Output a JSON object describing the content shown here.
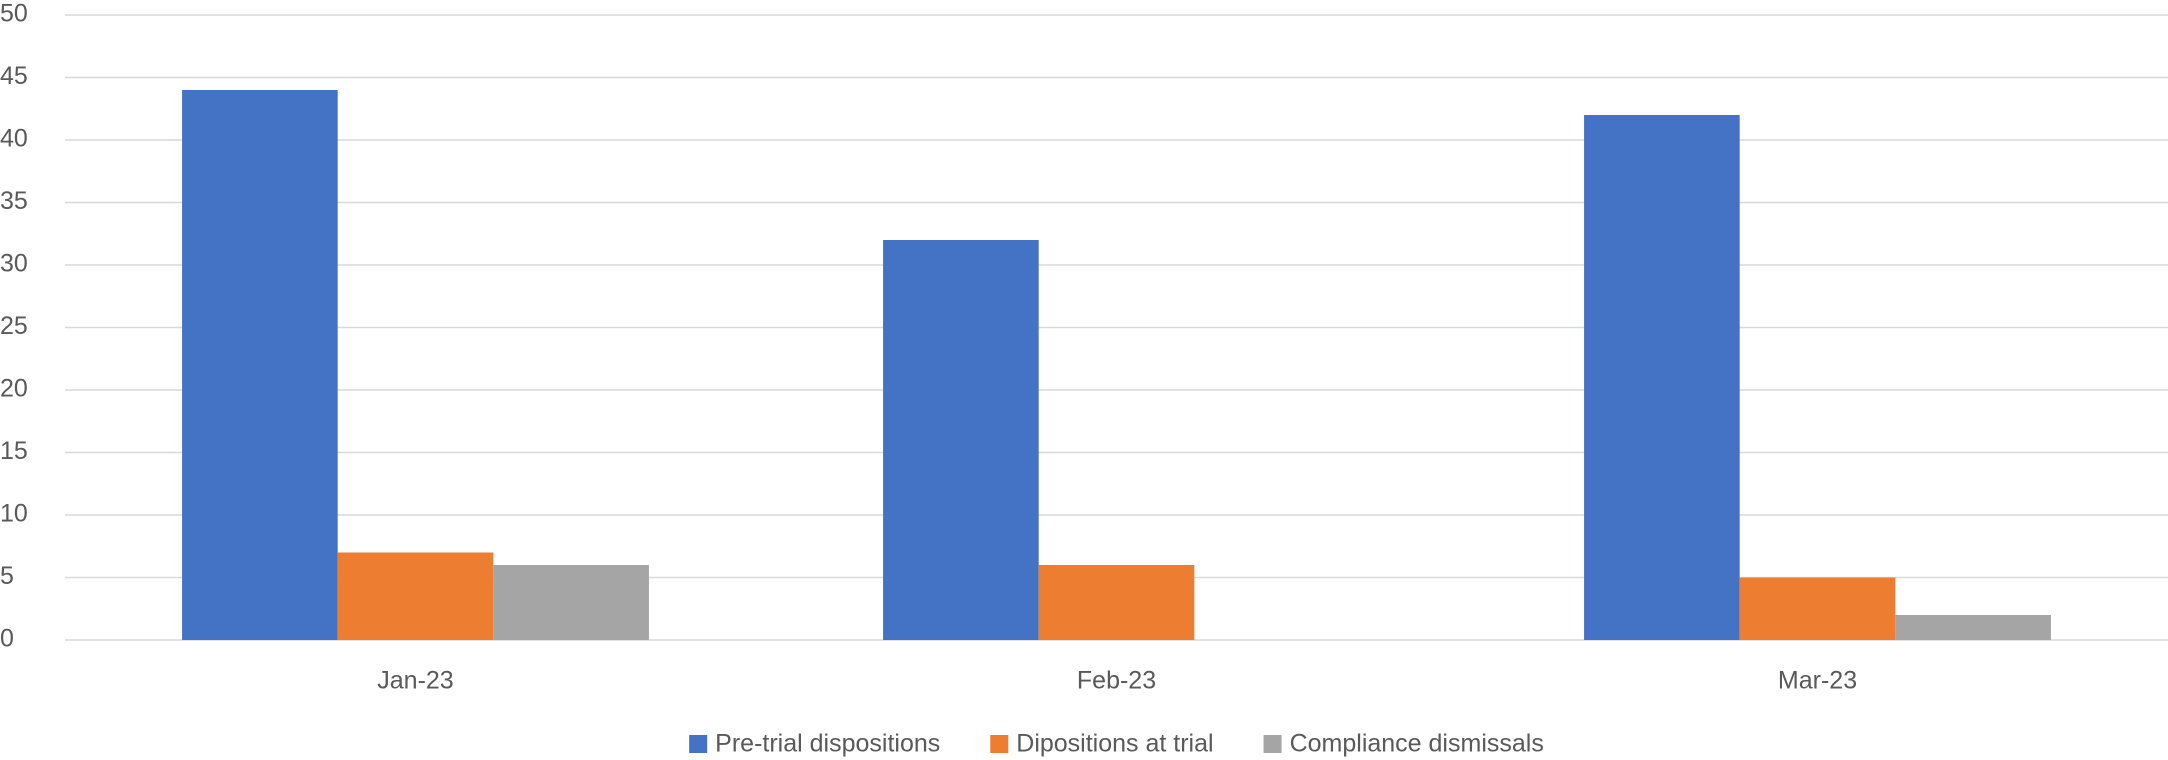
{
  "chart_data": {
    "type": "bar",
    "categories": [
      "Jan-23",
      "Feb-23",
      "Mar-23"
    ],
    "series": [
      {
        "name": "Pre-trial dispositions",
        "color": "#4472c4",
        "values": [
          44,
          32,
          42
        ]
      },
      {
        "name": "Dipositions at trial",
        "color": "#ed7d31",
        "values": [
          7,
          6,
          5
        ]
      },
      {
        "name": "Compliance dismissals",
        "color": "#a5a5a5",
        "values": [
          6,
          0,
          2
        ]
      }
    ],
    "ylim": [
      0,
      50
    ],
    "yticks": [
      0,
      5,
      10,
      15,
      20,
      25,
      30,
      35,
      40,
      45,
      50
    ],
    "grid": true,
    "legend": "bottom"
  }
}
